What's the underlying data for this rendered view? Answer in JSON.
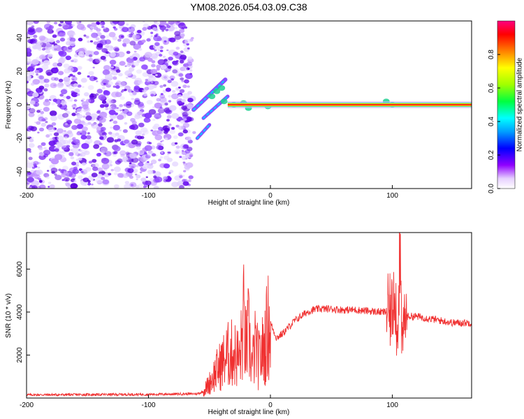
{
  "title": "YM08.2026.054.03.09.C38",
  "spectrogram": {
    "type": "heatmap",
    "xlabel": "Height of straight line (km)",
    "ylabel": "Frequency (Hz)",
    "xlim": [
      -200,
      165
    ],
    "ylim": [
      -50,
      50
    ],
    "xticks": [
      "-200",
      "-100",
      "0",
      "100"
    ],
    "yticks": [
      "40",
      "20",
      "0",
      "-20",
      "-40"
    ],
    "noise_region_x": [
      -200,
      -65
    ],
    "signal_line_freq": 0,
    "signal_line_x": [
      -35,
      165
    ],
    "colorbar": {
      "label": "Normalized spectral amplitude",
      "ticks": [
        "0.0",
        "0.2",
        "0.4",
        "0.6",
        "0.8"
      ],
      "range": [
        0,
        1
      ]
    }
  },
  "chart_data": {
    "type": "line",
    "xlabel": "Height of straight line (km)",
    "ylabel": "SNR (10 * v/v)",
    "xlim": [
      -200,
      165
    ],
    "ylim": [
      0,
      7700
    ],
    "xticks": [
      "-200",
      "-100",
      "0",
      "100"
    ],
    "yticks": [
      "2000",
      "4000",
      "6000"
    ],
    "color": "#f03030",
    "series": [
      {
        "x": [
          -200,
          -150,
          -100,
          -60,
          -55,
          -50,
          -45,
          -40,
          -35,
          -30,
          -25,
          -22,
          -20,
          -18,
          -15,
          -12,
          -10,
          -5,
          -2,
          0,
          5,
          10,
          15,
          20,
          25,
          30,
          35,
          40,
          50,
          60,
          70,
          80,
          90,
          95,
          100,
          102,
          104,
          106,
          108,
          110,
          120,
          130,
          140,
          150,
          165
        ],
        "y": [
          150,
          160,
          170,
          200,
          300,
          700,
          1200,
          1600,
          2000,
          2100,
          1800,
          3600,
          2300,
          3000,
          1500,
          2500,
          1700,
          2400,
          3300,
          3500,
          2800,
          3000,
          3300,
          3600,
          3800,
          4000,
          4100,
          4150,
          4150,
          4100,
          4100,
          4050,
          4000,
          4000,
          4000,
          6000,
          2300,
          7500,
          2200,
          3800,
          3800,
          3700,
          3600,
          3500,
          3500
        ]
      }
    ]
  }
}
